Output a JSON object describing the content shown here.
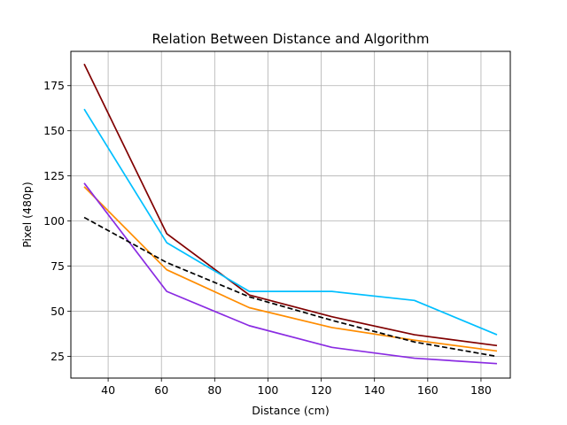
{
  "chart_data": {
    "type": "line",
    "title": "Relation Between Distance and Algorithm",
    "xlabel": "Distance (cm)",
    "ylabel": "Pixel (480p)",
    "xlim": [
      26,
      191
    ],
    "ylim": [
      13,
      194
    ],
    "xticks": [
      40,
      60,
      80,
      100,
      120,
      140,
      160,
      180
    ],
    "yticks": [
      25,
      50,
      75,
      100,
      125,
      150,
      175
    ],
    "grid": true,
    "legend": "none",
    "series": [
      {
        "color": "#800000",
        "dash": "solid",
        "x": [
          31,
          62,
          93,
          124,
          155,
          186
        ],
        "y": [
          187,
          93,
          59,
          47,
          37,
          31
        ]
      },
      {
        "color": "#00bfff",
        "dash": "solid",
        "x": [
          31,
          62,
          93,
          124,
          155,
          186
        ],
        "y": [
          162,
          88,
          61,
          61,
          56,
          37
        ]
      },
      {
        "color": "#ff8c00",
        "dash": "solid",
        "x": [
          31,
          62,
          93,
          124,
          155,
          186
        ],
        "y": [
          119,
          73,
          52,
          41,
          34,
          28
        ]
      },
      {
        "color": "#8a2be2",
        "dash": "solid",
        "x": [
          31,
          62,
          93,
          124,
          155,
          186
        ],
        "y": [
          121,
          61,
          42,
          30,
          24,
          21
        ]
      },
      {
        "color": "#000000",
        "dash": "dashed",
        "x": [
          31,
          62,
          93,
          124,
          155,
          186
        ],
        "y": [
          102,
          77,
          58,
          45,
          33,
          25
        ]
      }
    ]
  }
}
